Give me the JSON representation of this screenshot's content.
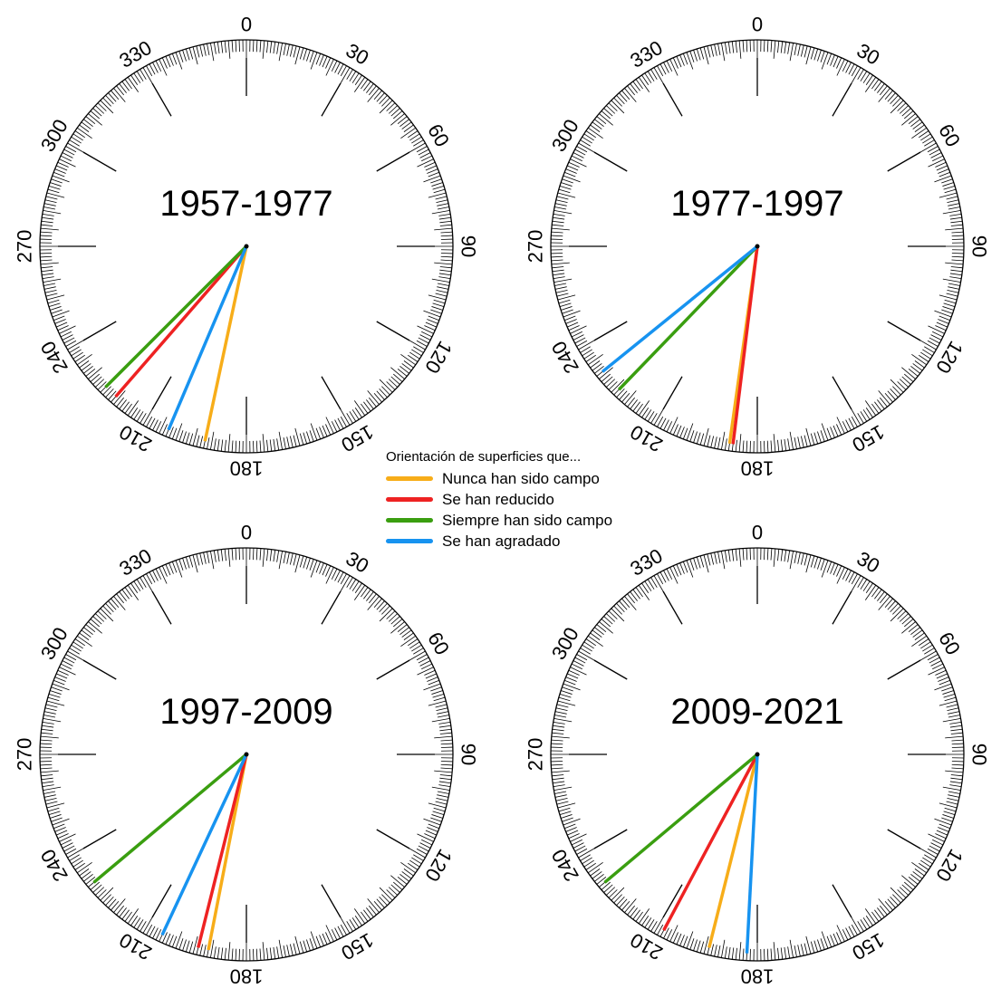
{
  "legend": {
    "title": "Orientación de superficies que...",
    "items": [
      {
        "label": "Nunca han sido campo",
        "color": "#f7ad19"
      },
      {
        "label": "Se han reducido",
        "color": "#ee2222"
      },
      {
        "label": "Siempre han sido campo",
        "color": "#3a9e10"
      },
      {
        "label": "Se han agradado",
        "color": "#1793f0"
      }
    ]
  },
  "chart_data": [
    {
      "type": "polar",
      "title": "1957-1977",
      "tick_labels": [
        "0",
        "30",
        "60",
        "90",
        "120",
        "150",
        "180",
        "210",
        "240",
        "270",
        "300",
        "330"
      ],
      "series": [
        {
          "name": "Nunca han sido campo",
          "color": "#f7ad19",
          "angle_deg": 192
        },
        {
          "name": "Se han reducido",
          "color": "#ee2222",
          "angle_deg": 221
        },
        {
          "name": "Siempre han sido campo",
          "color": "#3a9e10",
          "angle_deg": 225
        },
        {
          "name": "Se han agradado",
          "color": "#1793f0",
          "angle_deg": 203
        }
      ]
    },
    {
      "type": "polar",
      "title": "1977-1997",
      "tick_labels": [
        "0",
        "30",
        "60",
        "90",
        "120",
        "150",
        "180",
        "210",
        "240",
        "270",
        "300",
        "330"
      ],
      "series": [
        {
          "name": "Nunca han sido campo",
          "color": "#f7ad19",
          "angle_deg": 188
        },
        {
          "name": "Se han reducido",
          "color": "#ee2222",
          "angle_deg": 187
        },
        {
          "name": "Siempre han sido campo",
          "color": "#3a9e10",
          "angle_deg": 224
        },
        {
          "name": "Se han agradado",
          "color": "#1793f0",
          "angle_deg": 231
        }
      ]
    },
    {
      "type": "polar",
      "title": "1997-2009",
      "tick_labels": [
        "0",
        "30",
        "60",
        "90",
        "120",
        "150",
        "180",
        "210",
        "240",
        "270",
        "300",
        "330"
      ],
      "series": [
        {
          "name": "Nunca han sido campo",
          "color": "#f7ad19",
          "angle_deg": 191
        },
        {
          "name": "Se han reducido",
          "color": "#ee2222",
          "angle_deg": 194
        },
        {
          "name": "Siempre han sido campo",
          "color": "#3a9e10",
          "angle_deg": 230
        },
        {
          "name": "Se han agradado",
          "color": "#1793f0",
          "angle_deg": 205
        }
      ]
    },
    {
      "type": "polar",
      "title": "2009-2021",
      "tick_labels": [
        "0",
        "30",
        "60",
        "90",
        "120",
        "150",
        "180",
        "210",
        "240",
        "270",
        "300",
        "330"
      ],
      "series": [
        {
          "name": "Nunca han sido campo",
          "color": "#f7ad19",
          "angle_deg": 194
        },
        {
          "name": "Se han reducido",
          "color": "#ee2222",
          "angle_deg": 208
        },
        {
          "name": "Siempre han sido campo",
          "color": "#3a9e10",
          "angle_deg": 230
        },
        {
          "name": "Se han agradado",
          "color": "#1793f0",
          "angle_deg": 183
        }
      ]
    }
  ]
}
